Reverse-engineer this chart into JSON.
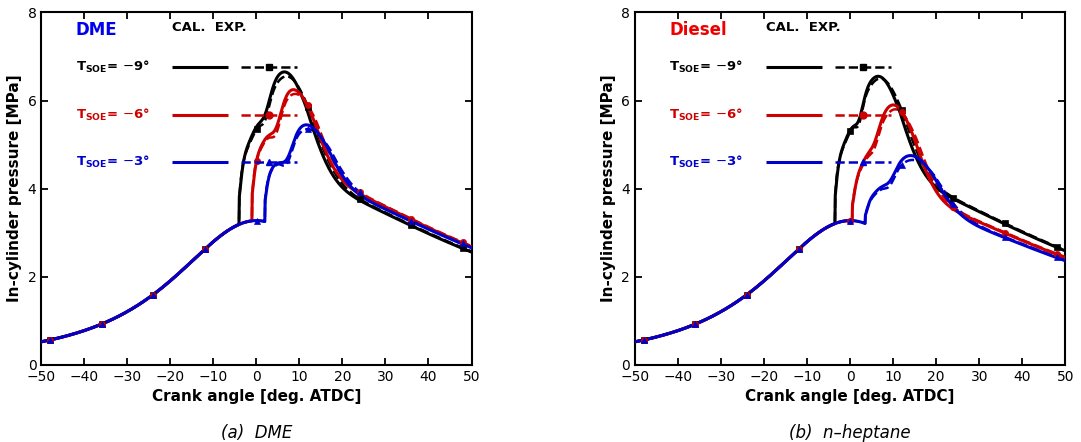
{
  "title_left": "(a)  DME",
  "title_right": "(b)  n–heptane",
  "fuel_label_left": "DME",
  "fuel_label_right": "Diesel",
  "fuel_color_left": "#0000EE",
  "fuel_color_right": "#EE0000",
  "xlabel": "Crank angle [deg. ATDC]",
  "ylabel": "In-cylinder pressure [MPa]",
  "xlim": [
    -50,
    50
  ],
  "ylim": [
    0,
    8
  ],
  "yticks": [
    0,
    2,
    4,
    6,
    8
  ],
  "xticks": [
    -50,
    -40,
    -30,
    -20,
    -10,
    0,
    10,
    20,
    30,
    40,
    50
  ],
  "bg_color": "#FFFFFF",
  "lw_cal": 2.2,
  "lw_exp": 1.8
}
